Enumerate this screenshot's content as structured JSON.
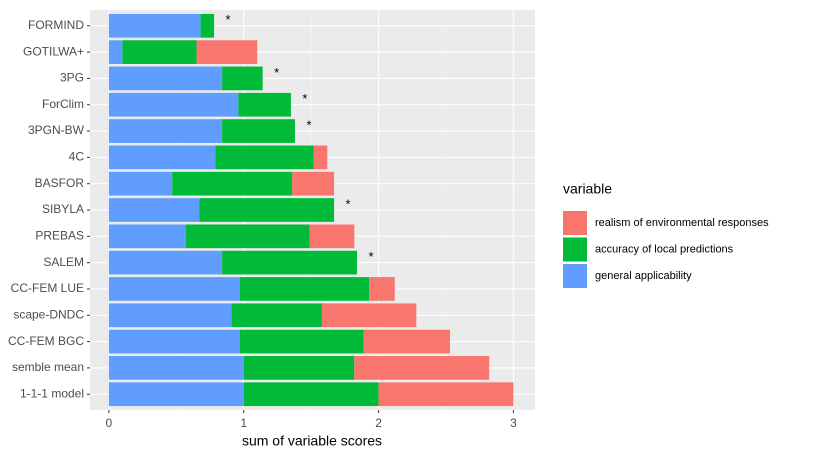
{
  "chart_data": {
    "type": "stacked-bar-horizontal",
    "x_label": "sum of variable scores",
    "categories": [
      "FORMIND",
      "GOTILWA+",
      "3PG",
      "ForClim",
      "3PGN-BW",
      "4C",
      "BASFOR",
      "SIBYLA",
      "PREBAS",
      "SALEM",
      "CC-FEM LUE",
      "scape-DNDC",
      "CC-FEM BGC",
      "semble mean",
      "1-1-1 model"
    ],
    "series": [
      {
        "name": "general applicability",
        "color": "#619CFF",
        "values": [
          0.68,
          0.1,
          0.84,
          0.96,
          0.84,
          0.79,
          0.47,
          0.67,
          0.57,
          0.84,
          0.97,
          0.91,
          0.97,
          1.0,
          1.0
        ]
      },
      {
        "name": "accuracy of local predictions",
        "color": "#00BA38",
        "values": [
          0.1,
          0.55,
          0.3,
          0.39,
          0.54,
          0.73,
          0.89,
          1.0,
          0.92,
          1.0,
          0.96,
          0.67,
          0.92,
          0.82,
          1.0
        ]
      },
      {
        "name": "realism of environmental responses",
        "color": "#F8766D",
        "values": [
          0,
          0.45,
          0,
          0,
          0,
          0.1,
          0.31,
          0,
          0.33,
          0,
          0.19,
          0.7,
          0.64,
          1.0,
          1.0
        ]
      }
    ],
    "annotations": [
      "*",
      null,
      "*",
      "*",
      "*",
      null,
      null,
      "*",
      null,
      "*",
      null,
      null,
      null,
      null,
      null
    ],
    "legend_title": "variable",
    "xlim": [
      -0.14,
      3.16
    ],
    "xticks": [
      0,
      1,
      2,
      3
    ],
    "grid": true
  }
}
